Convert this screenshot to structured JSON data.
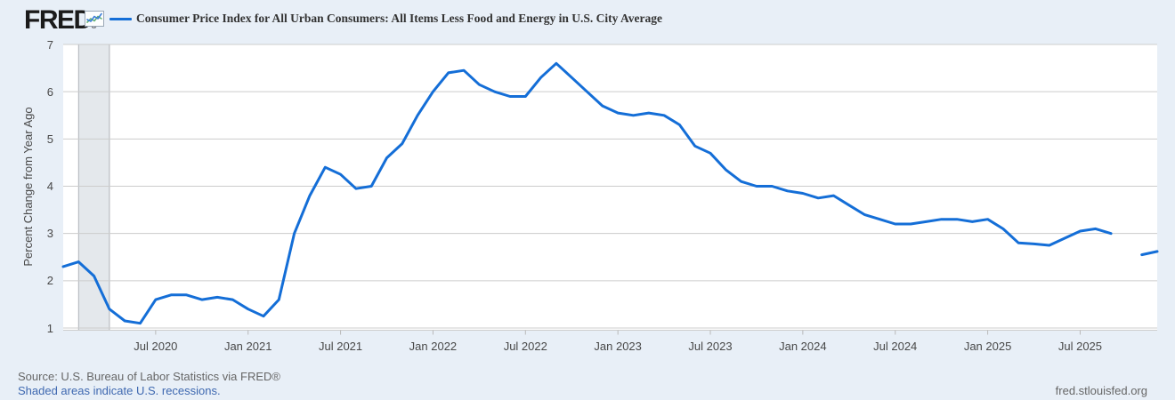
{
  "header": {
    "logo_text": "FRED",
    "logo_registered": "®"
  },
  "footer": {
    "source": "Source: U.S. Bureau of Labor Statistics via FRED®",
    "recession_note": "Shaded areas indicate U.S. recessions.",
    "site_url": "fred.stlouisfed.org"
  },
  "colors": {
    "background": "#e8eff7",
    "plot_background": "#ffffff",
    "gridline": "#cccccc",
    "tick_mark": "#b9b9b9",
    "recession_band": "#e4e8ec",
    "recession_band_edge": "#b0b4b9",
    "series_line": "#146ed7",
    "title_text": "#333333",
    "tick_text": "#484848",
    "source_text": "#666666",
    "link_text": "#3e68b0",
    "logo_text": "#1b1b1b",
    "icon_line_blue": "#3b7dd8",
    "icon_line_green": "#5fae74",
    "icon_border": "#9aa7b5"
  },
  "chart_data": {
    "type": "line",
    "title": "Consumer Price Index for All Urban Consumers: All Items Less Food and Energy in U.S. City Average",
    "xlabel": "",
    "ylabel": "Percent Change from Year Ago",
    "ylim": [
      1,
      7
    ],
    "y_ticks": [
      1,
      2,
      3,
      4,
      5,
      6,
      7
    ],
    "grid": "horizontal-only",
    "legend_position": "top",
    "x_start": "2020-01",
    "x_end": "2025-12",
    "x_freq": "monthly",
    "x_ticks": [
      {
        "label": "Jul 2020",
        "m": 6
      },
      {
        "label": "Jan 2021",
        "m": 12
      },
      {
        "label": "Jul 2021",
        "m": 18
      },
      {
        "label": "Jan 2022",
        "m": 24
      },
      {
        "label": "Jul 2022",
        "m": 30
      },
      {
        "label": "Jan 2023",
        "m": 36
      },
      {
        "label": "Jul 2023",
        "m": 42
      },
      {
        "label": "Jan 2024",
        "m": 48
      },
      {
        "label": "Jul 2024",
        "m": 54
      },
      {
        "label": "Jan 2025",
        "m": 60
      },
      {
        "label": "Jul 2025",
        "m": 66
      }
    ],
    "recession_band": {
      "start": "2020-02",
      "end": "2020-04",
      "start_month_index": 1,
      "end_month_index": 3
    },
    "data_gap_months": [
      "2025-10"
    ],
    "series": [
      {
        "name": "Consumer Price Index for All Urban Consumers: All Items Less Food and Energy in U.S. City Average",
        "color": "#146ed7",
        "values": [
          2.3,
          2.4,
          2.1,
          1.4,
          1.15,
          1.1,
          1.6,
          1.7,
          1.7,
          1.6,
          1.65,
          1.6,
          1.4,
          1.25,
          1.6,
          3.0,
          3.8,
          4.4,
          4.25,
          3.95,
          4.0,
          4.6,
          4.9,
          5.5,
          6.0,
          6.4,
          6.45,
          6.15,
          6.0,
          5.9,
          5.9,
          6.3,
          6.6,
          6.3,
          6.0,
          5.7,
          5.55,
          5.5,
          5.55,
          5.5,
          5.3,
          4.85,
          4.7,
          4.35,
          4.1,
          4.0,
          4.0,
          3.9,
          3.85,
          3.75,
          3.8,
          3.6,
          3.4,
          3.3,
          3.2,
          3.2,
          3.25,
          3.3,
          3.3,
          3.25,
          3.3,
          3.1,
          2.8,
          2.78,
          2.75,
          2.9,
          3.05,
          3.1,
          3.0,
          null,
          2.55,
          2.62
        ]
      }
    ]
  }
}
